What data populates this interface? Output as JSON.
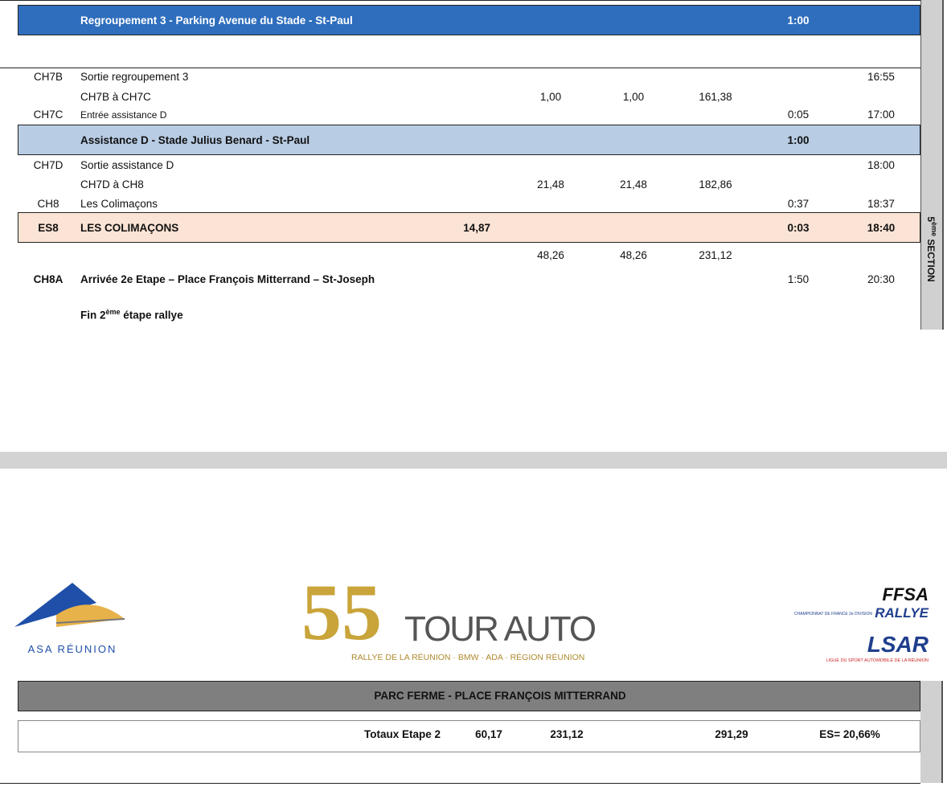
{
  "itinerary": {
    "rows": [
      {
        "label": "Regroupement 3 - Parking Avenue du Stade - St-Paul",
        "time_sector": "1:00",
        "background": "#2f6ebd"
      },
      {
        "code": "CH7B",
        "label": "Sortie regroupement 3",
        "time_hour": "16:55"
      },
      {
        "label": "CH7B à CH7C",
        "dist_liaison": "1,00",
        "dist_total": "1,00",
        "dist_cumul": "161,38"
      },
      {
        "code": "CH7C",
        "label": "Entrée assistance D",
        "time_sector": "0:05",
        "time_hour": "17:00"
      },
      {
        "label": "Assistance D - Stade Julius Benard - St-Paul",
        "time_sector": "1:00",
        "background": "#b8cce4"
      },
      {
        "code": "CH7D",
        "label": "Sortie assistance D",
        "time_hour": "18:00"
      },
      {
        "label": "CH7D à CH8",
        "dist_liaison": "21,48",
        "dist_total": "21,48",
        "dist_cumul": "182,86"
      },
      {
        "code": "CH8",
        "label": "Les Colimaçons",
        "time_sector": "0:37",
        "time_hour": "18:37"
      },
      {
        "code": "ES8",
        "label": "LES COLIMAÇONS",
        "dist_es": "14,87",
        "time_sector": "0:03",
        "time_hour": "18:40",
        "background": "#fbe4d5"
      },
      {
        "dist_liaison": "48,26",
        "dist_total": "48,26",
        "dist_cumul": "231,12"
      },
      {
        "code": "CH8A",
        "label": "Arrivée 2e Etape – Place François Mitterrand – St-Joseph",
        "time_sector": "1:50",
        "time_hour": "20:30"
      }
    ],
    "closing": {
      "before": "Fin 2",
      "sup": "ème",
      "after": " étape rallye"
    },
    "section": {
      "before": "5",
      "sup": "ème",
      "after": " SECTION"
    }
  },
  "logos": {
    "asa": "ASA RÉUNION",
    "tour_number": "55",
    "tour_name": "TOUR AUTO",
    "tour_sub": "RALLYE DE LA RÉUNION · BMW · ADA · RÉGION RÉUNION",
    "ffsa": "FFSA",
    "ffsa_sub": "CHAMPIONNAT DE FRANCE 2e DIVISION",
    "rallye": "RALLYE",
    "lsar": "LSAR",
    "lsar_sub": "LIGUE DU SPORT AUTOMOBILE DE LA RÉUNION"
  },
  "summary": {
    "parc_ferme": "PARC FERME - PLACE FRANÇOIS MITTERRAND",
    "totals_label": "Totaux Etape 2",
    "total_es": "60,17",
    "total_liaison": "231,12",
    "total_all": "291,29",
    "es_ratio": "ES= 20,66%"
  }
}
